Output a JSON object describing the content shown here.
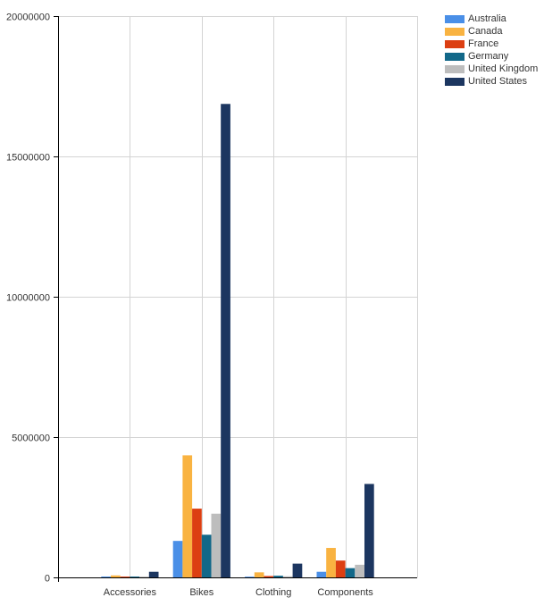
{
  "chart_data": {
    "type": "bar",
    "title": "",
    "xlabel": "",
    "ylabel": "",
    "categories": [
      "Accessories",
      "Bikes",
      "Clothing",
      "Components"
    ],
    "ylim": [
      0,
      20000000
    ],
    "yticks": [
      0,
      5000000,
      10000000,
      15000000,
      20000000
    ],
    "ytick_labels": [
      "0",
      "5000000",
      "10000000",
      "15000000",
      "20000000"
    ],
    "grid": true,
    "legend_position": "top-right",
    "series": [
      {
        "name": "Australia",
        "color": "#4a8fe7",
        "values": [
          30000,
          1300000,
          20000,
          200000
        ]
      },
      {
        "name": "Canada",
        "color": "#f9b341",
        "values": [
          70000,
          4350000,
          180000,
          1050000
        ]
      },
      {
        "name": "France",
        "color": "#dc3f12",
        "values": [
          30000,
          2450000,
          50000,
          600000
        ]
      },
      {
        "name": "Germany",
        "color": "#126889",
        "values": [
          30000,
          1520000,
          60000,
          330000
        ]
      },
      {
        "name": "United Kingdom",
        "color": "#bdbdbd",
        "values": [
          30000,
          2270000,
          40000,
          450000
        ]
      },
      {
        "name": "United States",
        "color": "#1c3660",
        "values": [
          200000,
          16870000,
          490000,
          3330000
        ]
      }
    ]
  }
}
